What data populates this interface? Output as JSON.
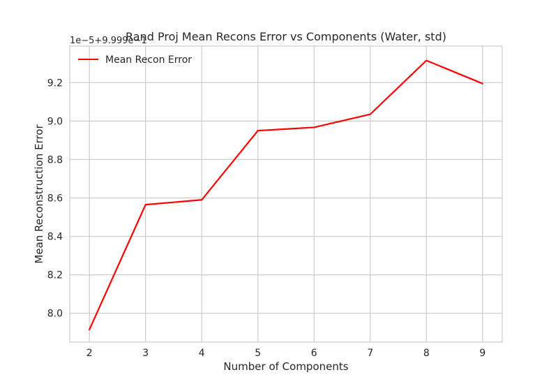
{
  "chart_data": {
    "type": "line",
    "title": "Rand Proj Mean Recons Error vs Components (Water, std)",
    "xlabel": "Number of Components",
    "ylabel": "Mean Reconstruction Error",
    "y_offset_label": "1e−5+9.999e−1",
    "x": [
      2,
      3,
      4,
      5,
      6,
      7,
      8,
      9
    ],
    "x_ticks": [
      "2",
      "3",
      "4",
      "5",
      "6",
      "7",
      "8",
      "9"
    ],
    "y_ticks": [
      "8.0",
      "8.2",
      "8.4",
      "8.6",
      "8.8",
      "9.0",
      "9.2"
    ],
    "y_tick_values": [
      8.0,
      8.2,
      8.4,
      8.6,
      8.8,
      9.0,
      9.2
    ],
    "xlim": [
      1.65,
      9.35
    ],
    "ylim": [
      7.85,
      9.39
    ],
    "series": [
      {
        "name": "Mean Recon Error",
        "color": "#ff0000",
        "values": [
          7.915,
          8.565,
          8.59,
          8.95,
          8.967,
          9.035,
          9.315,
          9.195
        ]
      }
    ],
    "legend_position": "top-left",
    "grid": true,
    "style": "seaborn-whitegrid"
  }
}
